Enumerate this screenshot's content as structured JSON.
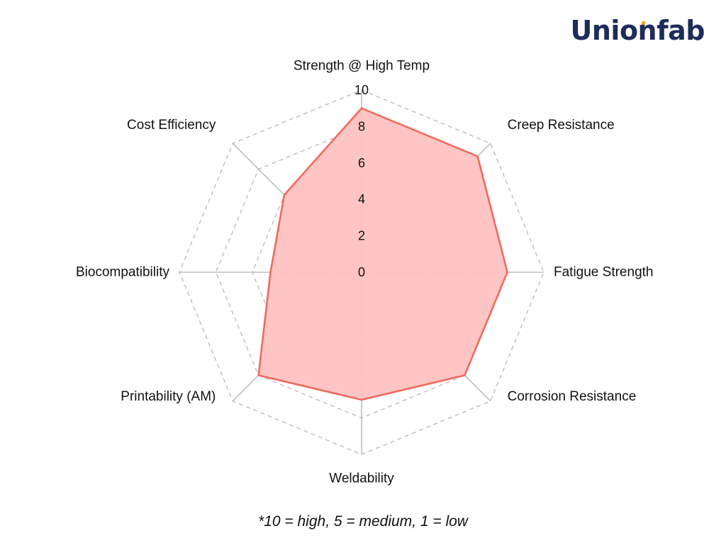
{
  "brand": {
    "name": "Unionfab",
    "text_color": "#1e2c5a",
    "accent_color": "#f5a623"
  },
  "footnote": "*10 = high, 5 = medium, 1 = low",
  "chart_data": {
    "type": "radar",
    "axes": [
      "Strength @ High Temp",
      "Creep Resistance",
      "Fatigue Strength",
      "Corrosion Resistance",
      "Weldability",
      "Printability (AM)",
      "Biocompatibility",
      "Cost Efficiency"
    ],
    "series": [
      {
        "values": [
          9,
          9,
          8,
          8,
          7,
          8,
          5,
          6
        ],
        "line_color": "#f06a5f",
        "fill_color": "#ffc2c2"
      }
    ],
    "r_range": [
      0,
      10
    ],
    "r_ticks": [
      0,
      2,
      4,
      6,
      8,
      10
    ],
    "grid": true,
    "legend": "none"
  }
}
